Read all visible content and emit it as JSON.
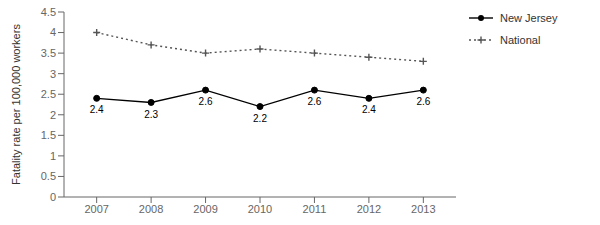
{
  "chart_data": {
    "type": "line",
    "ylabel": "Fatality rate per 100,000 workers",
    "x": [
      2007,
      2008,
      2009,
      2010,
      2011,
      2012,
      2013
    ],
    "xlim": [
      2006.4,
      2013.6
    ],
    "xticks": [
      2007,
      2008,
      2009,
      2010,
      2011,
      2012,
      2013
    ],
    "ylim": [
      0,
      4.5
    ],
    "yticks": [
      0,
      0.5,
      1,
      1.5,
      2,
      2.5,
      3,
      3.5,
      4,
      4.5
    ],
    "grid": false,
    "legend": "right",
    "series": [
      {
        "name": "New Jersey",
        "color": "#000000",
        "line_style": "solid",
        "marker": "circle",
        "data_labels": true,
        "values": [
          2.4,
          2.3,
          2.6,
          2.2,
          2.6,
          2.4,
          2.6
        ]
      },
      {
        "name": "National",
        "color": "#555555",
        "line_style": "dotted",
        "marker": "plus",
        "values": [
          4.0,
          3.7,
          3.5,
          3.6,
          3.5,
          3.4,
          3.3
        ]
      }
    ]
  }
}
